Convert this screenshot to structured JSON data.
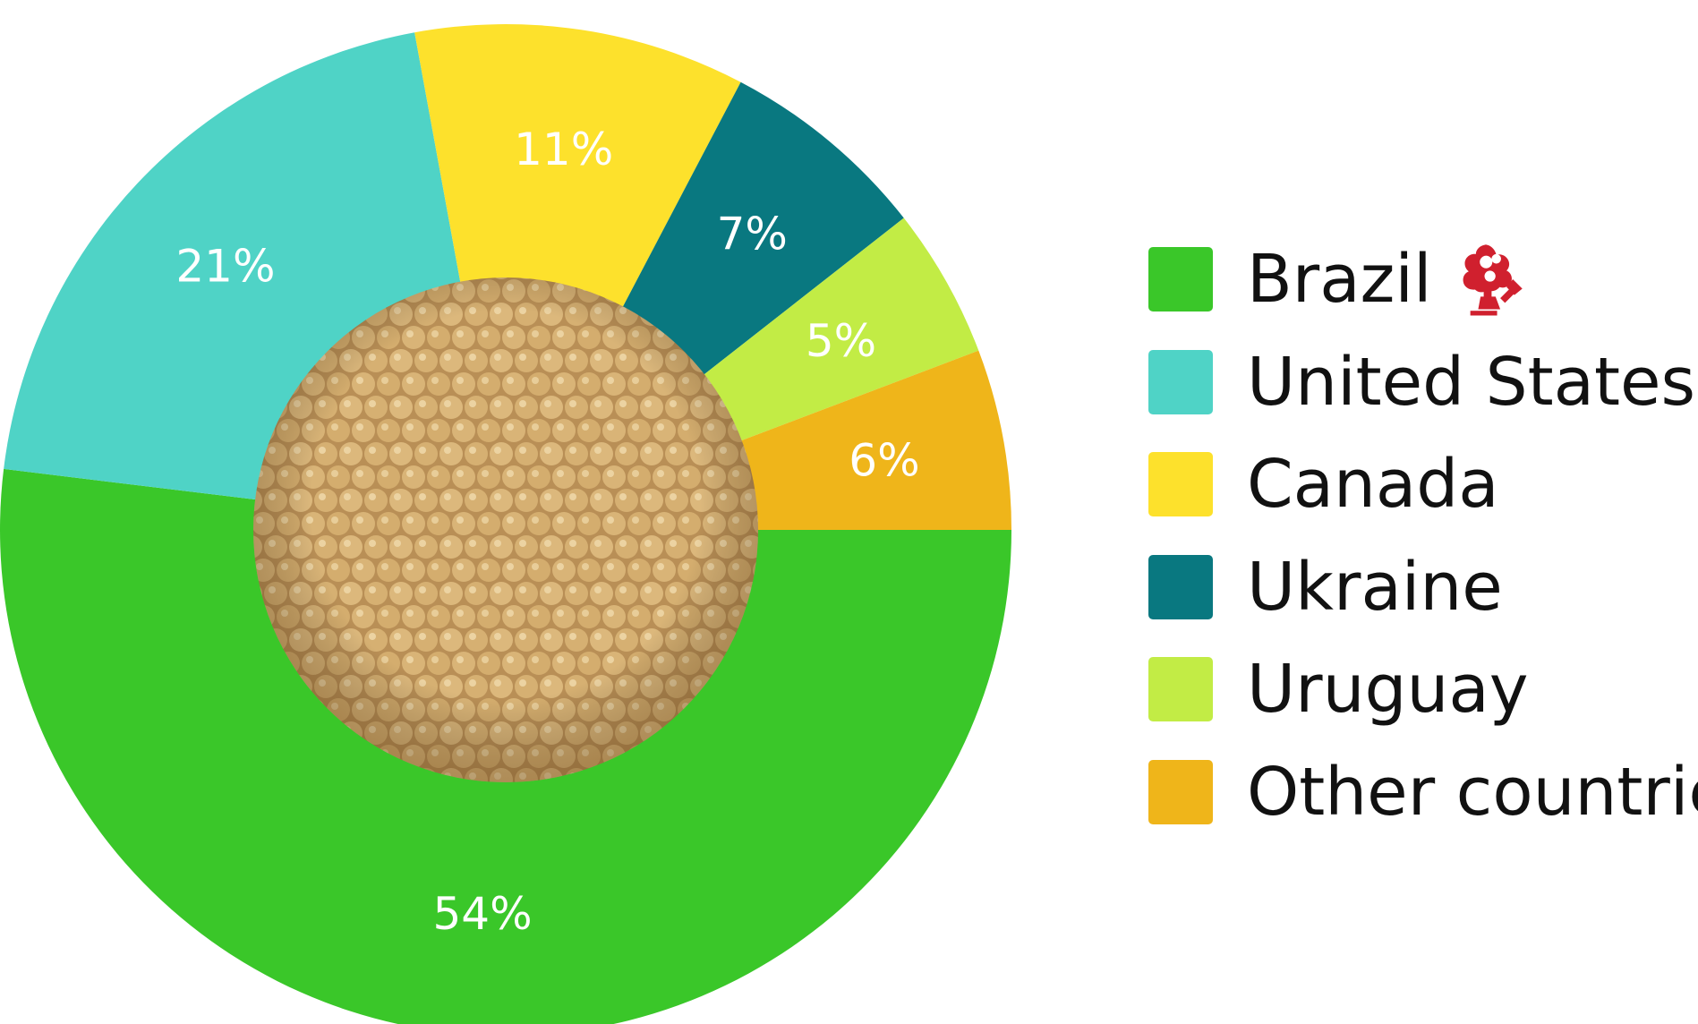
{
  "chart_data": {
    "type": "pie",
    "categories": [
      "Brazil",
      "United States",
      "Canada",
      "Ukraine",
      "Uruguay",
      "Other countries"
    ],
    "values": [
      54,
      21,
      11,
      7,
      5,
      6
    ],
    "value_labels": [
      "54%",
      "21%",
      "11%",
      "7%",
      "5%",
      "6%"
    ],
    "colors": [
      "#3ac729",
      "#4fd3c6",
      "#fde12c",
      "#097880",
      "#c2ec45",
      "#efb51a"
    ],
    "legend_position": "right",
    "center_image": "soybeans-photo"
  },
  "legend": {
    "brazil_icon": "deforestation-tree-icon",
    "icon_color": "#d0202e"
  }
}
